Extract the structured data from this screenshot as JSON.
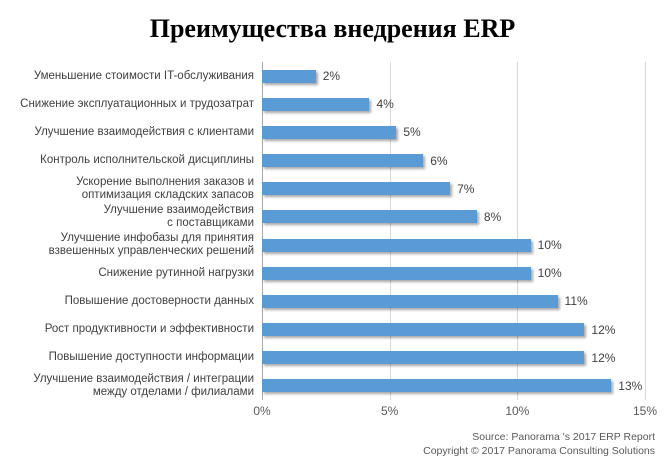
{
  "title": "Преимущества внедрения ERP",
  "chart_data": {
    "type": "bar",
    "orientation": "horizontal",
    "title": "Преимущества внедрения ERP",
    "categories": [
      "Уменьшение стоимости IT-обслуживания",
      "Снижение эксплуатационных и трудозатрат",
      "Улучшение взаимодействия с клиентами",
      "Контроль исполнительской дисциплины",
      "Ускорение выполнения заказов и\nоптимизация складских запасов",
      "Улучшение взаимодействия\nс поставщиками",
      "Улучшение инфобазы для принятия\nвзвешенных управленческих решений",
      "Снижение рутинной нагрузки",
      "Повышение достоверности данных",
      "Рост продуктивности и эффективности",
      "Повышение доступности информации",
      "Улучшение взаимодействия / интеграции\nмежду отделами / филиалами"
    ],
    "values": [
      2,
      4,
      5,
      6,
      7,
      8,
      10,
      10,
      11,
      12,
      12,
      13
    ],
    "labels": [
      "2%",
      "4%",
      "5%",
      "6%",
      "7%",
      "8%",
      "10%",
      "10%",
      "11%",
      "12%",
      "12%",
      "13%"
    ],
    "x_ticks": [
      "0%",
      "5%",
      "10%",
      "15%"
    ],
    "xlim": [
      0,
      15
    ],
    "unit": "%",
    "bar_color": "#5B9BD5",
    "gridline_color": "#D9D9D9",
    "axis_line_color": "#A6A6A6",
    "grid": "vertical-only",
    "legend": "none"
  },
  "source": {
    "line1": "Source: Panorama 's 2017 ERP Report",
    "line2": "Copyright © 2017 Panorama Consulting Solutions"
  }
}
